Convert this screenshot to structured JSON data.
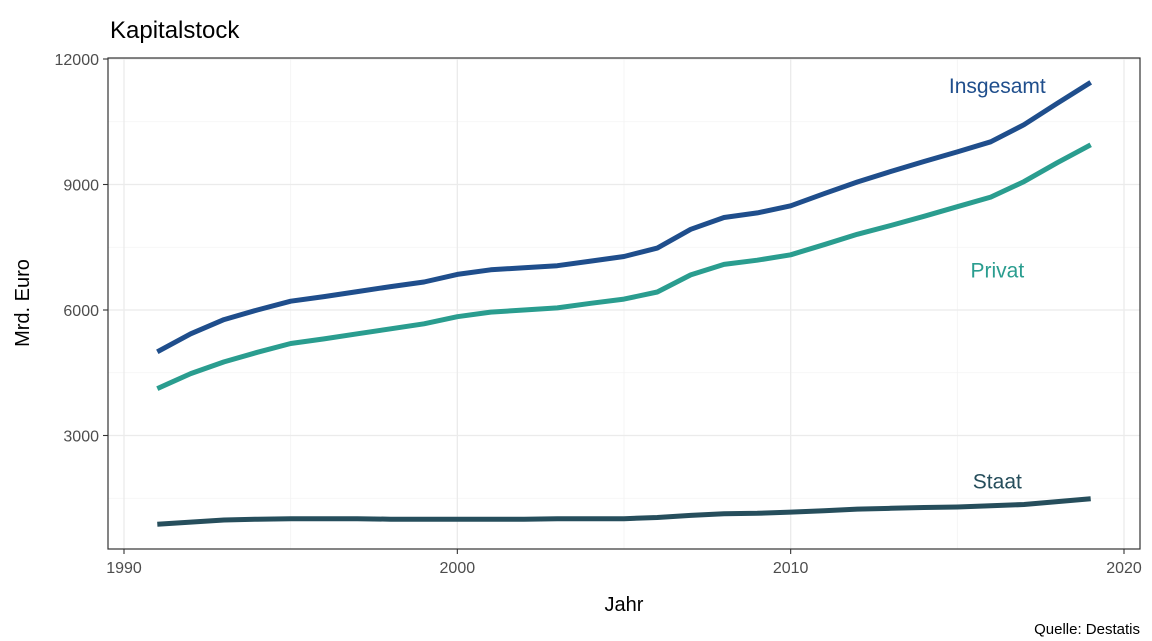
{
  "chart_data": {
    "type": "line",
    "title": "Kapitalstock",
    "xlabel": "Jahr",
    "ylabel": "Mrd. Euro",
    "caption": "Quelle: Destatis",
    "xlim": [
      1990,
      2020
    ],
    "ylim": [
      0,
      12000
    ],
    "x_ticks": [
      1990,
      2000,
      2010,
      2020
    ],
    "y_ticks": [
      3000,
      6000,
      9000,
      12000
    ],
    "grid": true,
    "legend": "none (direct labels)",
    "x": [
      1991,
      1992,
      1993,
      1994,
      1995,
      1996,
      1997,
      1998,
      1999,
      2000,
      2001,
      2002,
      2003,
      2004,
      2005,
      2006,
      2007,
      2008,
      2009,
      2010,
      2011,
      2012,
      2013,
      2014,
      2015,
      2016,
      2017,
      2018,
      2019
    ],
    "series": [
      {
        "name": "Insgesamt",
        "color": "#1f4e8c",
        "values": [
          5000,
          5430,
          5770,
          6000,
          6210,
          6320,
          6440,
          6560,
          6670,
          6850,
          6960,
          7010,
          7060,
          7170,
          7280,
          7480,
          7930,
          8210,
          8320,
          8490,
          8780,
          9060,
          9310,
          9550,
          9780,
          10020,
          10430,
          10940,
          11440
        ]
      },
      {
        "name": "Privat",
        "color": "#2a9d8f",
        "values": [
          4120,
          4480,
          4760,
          4990,
          5200,
          5310,
          5430,
          5550,
          5670,
          5840,
          5950,
          6000,
          6050,
          6160,
          6260,
          6430,
          6840,
          7090,
          7190,
          7320,
          7560,
          7810,
          8020,
          8240,
          8470,
          8700,
          9070,
          9520,
          9950
        ]
      },
      {
        "name": "Staat",
        "color": "#264e5c",
        "values": [
          880,
          930,
          980,
          1000,
          1010,
          1010,
          1010,
          1000,
          1000,
          1000,
          1000,
          1000,
          1010,
          1010,
          1010,
          1040,
          1090,
          1130,
          1140,
          1170,
          1200,
          1240,
          1260,
          1280,
          1290,
          1320,
          1350,
          1420,
          1490
        ]
      }
    ]
  }
}
